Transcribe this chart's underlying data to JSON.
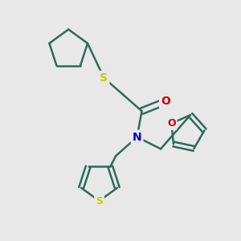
{
  "background_color": "#e8e8e8",
  "bond_color": "#2d6b5a",
  "S_color": "#cccc00",
  "N_color": "#0000cc",
  "O_color": "#cc0000",
  "bond_width": 1.8,
  "figsize": [
    3.0,
    3.0
  ],
  "dpi": 100,
  "xlim": [
    0,
    10
  ],
  "ylim": [
    0,
    10
  ]
}
